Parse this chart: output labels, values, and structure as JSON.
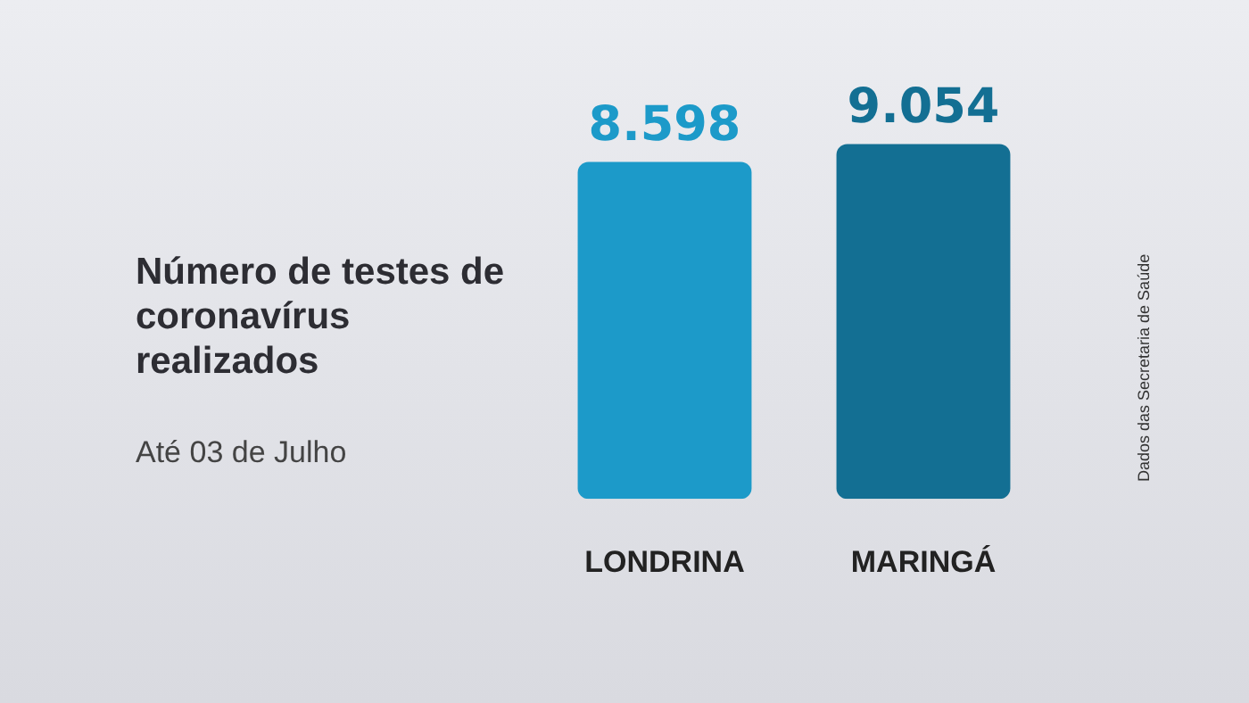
{
  "chart_data": {
    "type": "bar",
    "title": "Número de testes de coronavírus realizados",
    "subtitle": "Até 03 de Julho",
    "categories": [
      "LONDRINA",
      "MARINGÁ"
    ],
    "values": [
      8598,
      9054
    ],
    "colors": [
      "#1c9ac9",
      "#136f93"
    ],
    "value_labels": [
      "8.598",
      "9.054"
    ],
    "annotations": [
      "Dados das Secretaria de Saúde"
    ],
    "grid": false,
    "legend": false
  }
}
